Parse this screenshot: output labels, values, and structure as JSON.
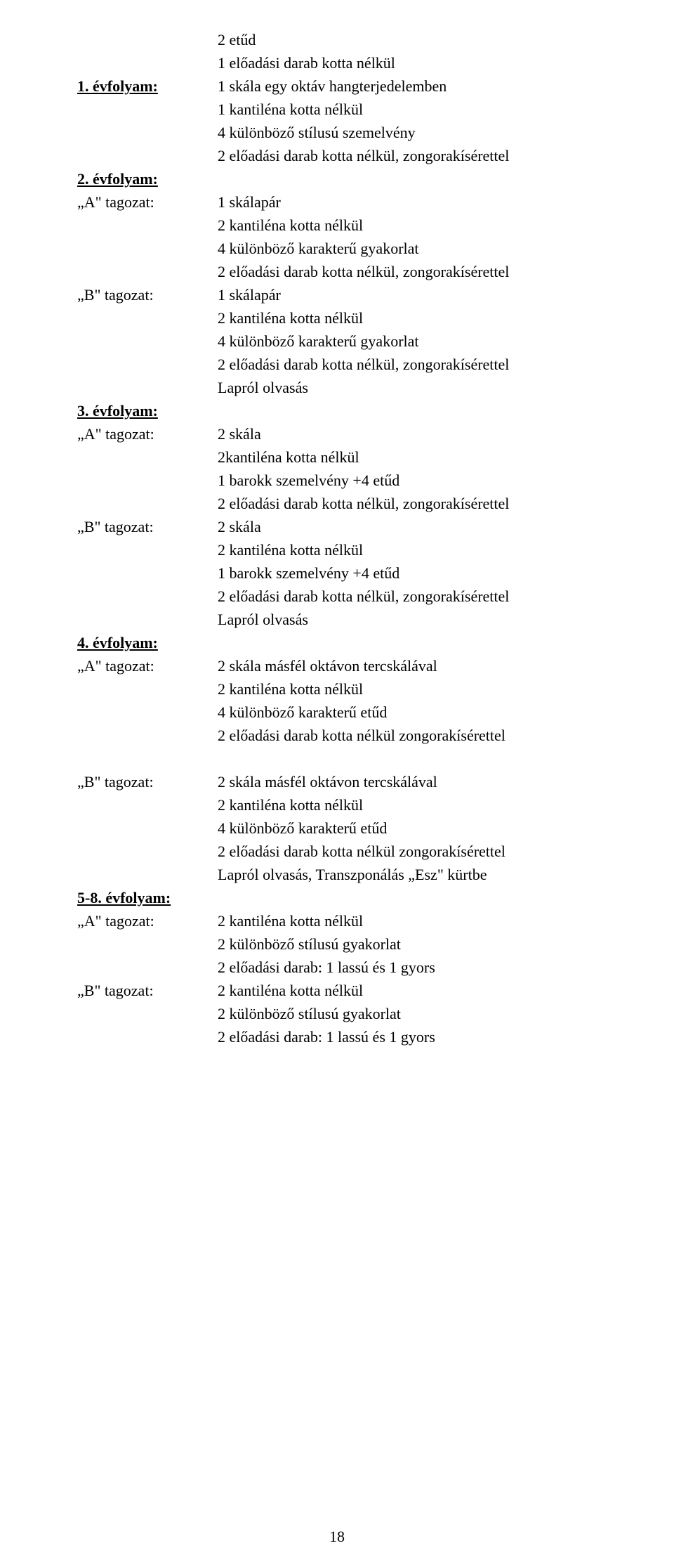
{
  "font_family": "Times New Roman",
  "font_size_pt": 16,
  "text_color": "#000000",
  "background_color": "#ffffff",
  "page_number": "18",
  "sections": {
    "intro": {
      "lines": [
        "2 etűd",
        "1 előadási darab kotta nélkül"
      ]
    },
    "ev1": {
      "label": "1. évfolyam:",
      "lines": [
        "1 skála egy oktáv hangterjedelemben",
        "1 kantiléna kotta nélkül",
        "4 különböző stílusú szemelvény",
        "2 előadási darab kotta nélkül, zongorakísérettel"
      ]
    },
    "ev2": {
      "label": "2. évfolyam:",
      "a_label": "„A\" tagozat:",
      "a_lines": [
        "1 skálapár",
        "2 kantiléna kotta nélkül",
        "4 különböző karakterű gyakorlat",
        "2 előadási darab kotta nélkül, zongorakísérettel"
      ],
      "b_label": "„B\" tagozat:",
      "b_lines": [
        "1 skálapár",
        "2 kantiléna kotta nélkül",
        "4 különböző karakterű gyakorlat",
        "2 előadási darab kotta nélkül, zongorakísérettel",
        "Lapról olvasás"
      ]
    },
    "ev3": {
      "label": "3. évfolyam:",
      "a_label": "„A\" tagozat:",
      "a_lines": [
        "2 skála",
        "2kantiléna kotta nélkül",
        "1 barokk szemelvény +4 etűd",
        "2 előadási darab kotta nélkül, zongorakísérettel"
      ],
      "b_label": "„B\" tagozat:",
      "b_lines": [
        "2 skála",
        "2 kantiléna kotta nélkül",
        "1 barokk szemelvény +4 etűd",
        "2 előadási darab kotta nélkül, zongorakísérettel",
        "Lapról olvasás"
      ]
    },
    "ev4": {
      "label": "4. évfolyam:",
      "a_label": "„A\" tagozat:",
      "a_lines": [
        "2 skála másfél oktávon tercskálával",
        "2 kantiléna kotta nélkül",
        "4 különböző karakterű etűd",
        "2 előadási darab kotta nélkül zongorakísérettel"
      ],
      "b_label": "„B\" tagozat:",
      "b_lines": [
        "2 skála másfél oktávon tercskálával",
        "2 kantiléna kotta nélkül",
        "4 különböző karakterű etűd",
        "2 előadási darab kotta nélkül zongorakísérettel",
        "Lapról olvasás, Transzponálás „Esz\" kürtbe"
      ]
    },
    "ev5_8": {
      "label": "5-8. évfolyam:",
      "a_label": "„A\" tagozat:",
      "a_lines": [
        "2 kantiléna kotta nélkül",
        "2 különböző stílusú gyakorlat",
        "2 előadási darab: 1 lassú és 1 gyors"
      ],
      "b_label": "„B\" tagozat:",
      "b_lines": [
        "2 kantiléna kotta nélkül",
        "2 különböző stílusú gyakorlat",
        "2 előadási darab: 1 lassú és 1 gyors"
      ]
    }
  }
}
